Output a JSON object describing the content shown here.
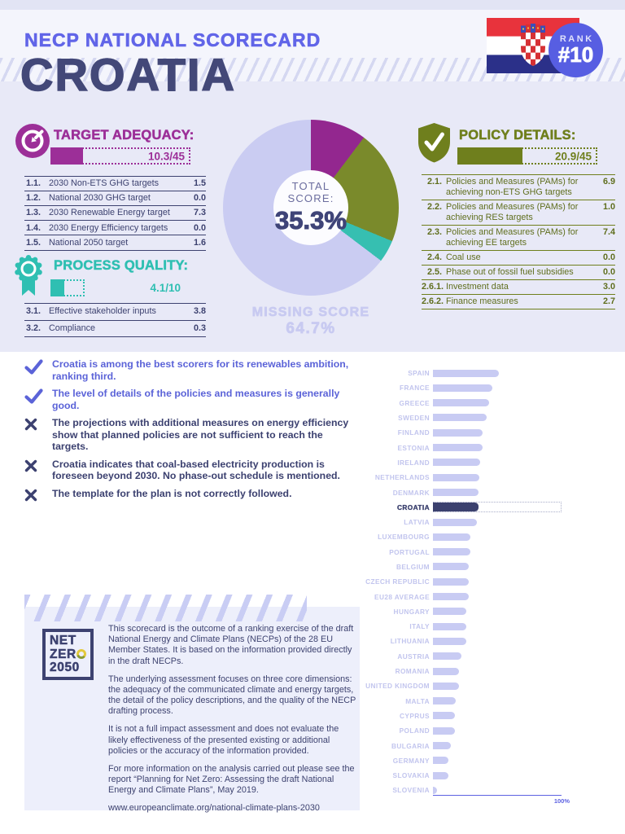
{
  "header": {
    "kicker": "NECP NATIONAL SCORECARD",
    "country": "CROATIA",
    "rank_label": "RANK",
    "rank_value": "#10"
  },
  "total": {
    "label_line1": "TOTAL",
    "label_line2": "SCORE:",
    "value": "35.3%",
    "missing_label": "MISSING SCORE",
    "missing_value": "64.7%"
  },
  "sections": {
    "target_adequacy": {
      "title": "TARGET ADEQUACY:",
      "score_label": "10.3/45",
      "value": 10.3,
      "max": 45,
      "color": "#9c2f98",
      "rows": [
        {
          "num": "1.1.",
          "label": "2030 Non-ETS GHG targets",
          "value": "1.5"
        },
        {
          "num": "1.2.",
          "label": "National 2030 GHG target",
          "value": "0.0"
        },
        {
          "num": "1.3.",
          "label": "2030 Renewable Energy target",
          "value": "7.3"
        },
        {
          "num": "1.4.",
          "label": "2030 Energy Efficiency targets",
          "value": "0.0"
        },
        {
          "num": "1.5.",
          "label": "National 2050 target",
          "value": "1.6"
        }
      ]
    },
    "process_quality": {
      "title": "PROCESS QUALITY:",
      "score_label": "4.1/10",
      "value": 4.1,
      "max": 10,
      "color": "#2fbfb2",
      "rows": [
        {
          "num": "3.1.",
          "label": "Effective stakeholder inputs",
          "value": "3.8"
        },
        {
          "num": "3.2.",
          "label": "Compliance",
          "value": "0.3"
        }
      ]
    },
    "policy_details": {
      "title": "POLICY DETAILS:",
      "score_label": "20.9/45",
      "value": 20.9,
      "max": 45,
      "color": "#6f7f1d",
      "rows": [
        {
          "num": "2.1.",
          "label": "Policies and Measures (PAMs) for achieving non-ETS GHG targets",
          "value": "6.9"
        },
        {
          "num": "2.2.",
          "label": "Policies and Measures (PAMs) for achieving RES targets",
          "value": "1.0"
        },
        {
          "num": "2.3.",
          "label": "Policies and Measures (PAMs) for achieving EE targets",
          "value": "7.4"
        },
        {
          "num": "2.4.",
          "label": "Coal use",
          "value": "0.0"
        },
        {
          "num": "2.5.",
          "label": "Phase out of fossil fuel subsidies",
          "value": "0.0"
        },
        {
          "num": "2.6.1.",
          "label": "Investment data",
          "value": "3.0"
        },
        {
          "num": "2.6.2.",
          "label": "Finance measures",
          "value": "2.7"
        }
      ]
    }
  },
  "findings": [
    {
      "type": "positive",
      "text": "Croatia is among the best scorers for its renewables ambition, ranking third."
    },
    {
      "type": "positive",
      "text": "The level of details of the policies and measures is generally good."
    },
    {
      "type": "negative",
      "text": "The projections with additional measures on energy efficiency show that planned policies are not sufficient to reach the targets."
    },
    {
      "type": "negative",
      "text": "Croatia indicates that coal-based electricity production is foreseen beyond 2030. No phase-out schedule is mentioned."
    },
    {
      "type": "negative",
      "text": "The template for the plan is not correctly followed."
    }
  ],
  "chart_data": [
    {
      "type": "pie",
      "subtype": "donut",
      "title": "TOTAL SCORE: 35.3%",
      "segments": [
        {
          "label": "Target adequacy",
          "value": 10.3,
          "color": "#93278f"
        },
        {
          "label": "Policy details",
          "value": 20.9,
          "color": "#7a8a2b"
        },
        {
          "label": "Process quality",
          "value": 4.1,
          "color": "#36bfb1"
        },
        {
          "label": "Missing score",
          "value": 64.7,
          "color": "#caccf2"
        }
      ]
    },
    {
      "type": "bar",
      "orientation": "horizontal",
      "axis_max": 100,
      "axis_max_label": "100%",
      "highlight_category": "CROATIA",
      "categories": [
        "SPAIN",
        "FRANCE",
        "GREECE",
        "SWEDEN",
        "FINLAND",
        "ESTONIA",
        "IRELAND",
        "NETHERLANDS",
        "DENMARK",
        "CROATIA",
        "LATVIA",
        "LUXEMBOURG",
        "PORTUGAL",
        "BELGIUM",
        "CZECH REPUBLIC",
        "EU28 AVERAGE",
        "HUNGARY",
        "ITALY",
        "LITHUANIA",
        "AUSTRIA",
        "ROMANIA",
        "UNITED KINGDOM",
        "MALTA",
        "CYPRUS",
        "POLAND",
        "BULGARIA",
        "GERMANY",
        "SLOVAKIA",
        "SLOVENIA"
      ],
      "values": [
        51.3,
        46.2,
        43.7,
        41.8,
        38.6,
        38.4,
        36.7,
        35.9,
        35.5,
        35.3,
        34.0,
        29.2,
        29.0,
        27.9,
        27.8,
        27.8,
        26.1,
        25.9,
        25.7,
        22.3,
        20.4,
        20.2,
        17.5,
        17.3,
        17.1,
        13.8,
        12.2,
        11.9,
        3.2
      ]
    }
  ],
  "infobox": {
    "logo_lines": [
      "NET",
      "ZERO",
      "2050"
    ],
    "paragraphs": [
      "This scorecard is the outcome of a ranking exercise of the draft National Energy and Climate Plans (NECPs) of the 28 EU Member States. It is based on the information provided directly in the draft NECPs.",
      "The underlying assessment focuses on three core dimensions: the adequacy of the communicated climate and energy targets, the detail of the policy descriptions, and the quality of the NECP drafting process.",
      "It is not a full impact assessment and does not evaluate the likely effectiveness of the presented existing or additional policies or the accuracy of the information provided.",
      "For more information on the analysis carried out please see the report “Planning for Net Zero: Assessing the draft National Energy and Climate Plans”, May 2019.",
      "www.europeanclimate.org/national-climate-plans-2030"
    ]
  }
}
